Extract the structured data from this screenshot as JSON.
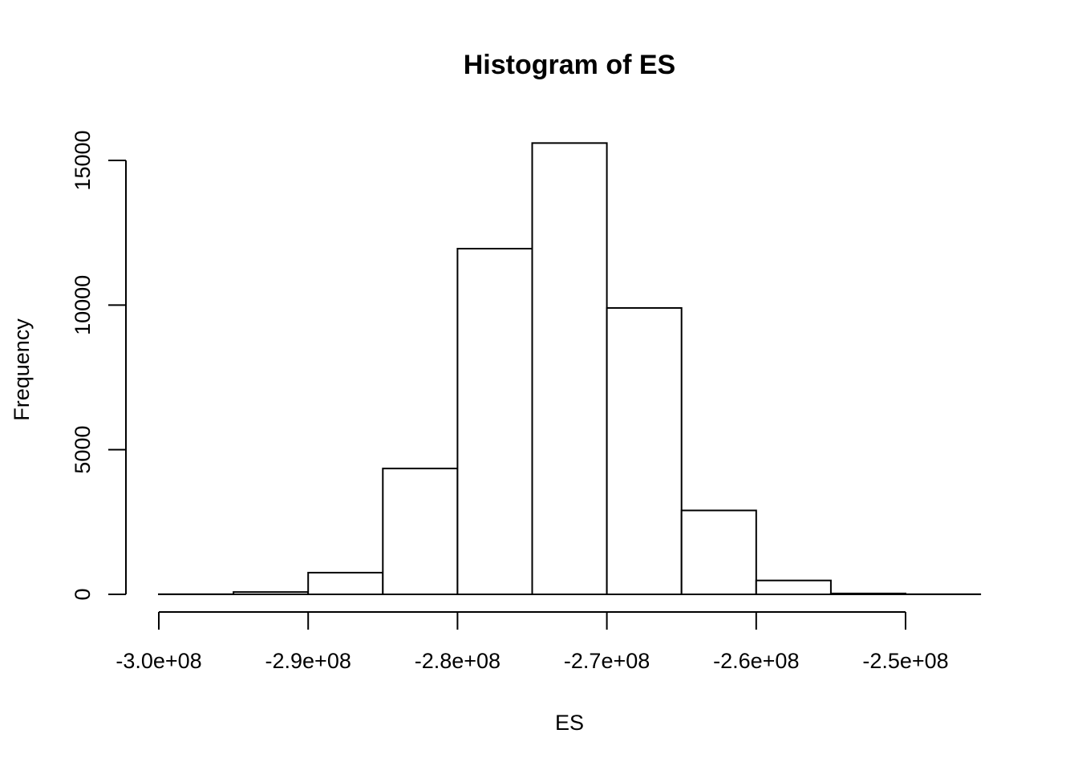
{
  "chart_data": {
    "type": "bar",
    "title": "Histogram of ES",
    "xlabel": "ES",
    "ylabel": "Frequency",
    "xlim": [
      -300000000,
      -245000000
    ],
    "ylim": [
      0,
      15000
    ],
    "x_ticks": [
      -300000000,
      -290000000,
      -280000000,
      -270000000,
      -260000000,
      -250000000
    ],
    "x_tick_labels": [
      "-3.0e+08",
      "-2.9e+08",
      "-2.8e+08",
      "-2.7e+08",
      "-2.6e+08",
      "-2.5e+08"
    ],
    "y_ticks": [
      0,
      5000,
      10000,
      15000
    ],
    "y_tick_labels": [
      "0",
      "5000",
      "10000",
      "15000"
    ],
    "bins": [
      {
        "x0": -300000000,
        "x1": -295000000,
        "count": 5
      },
      {
        "x0": -295000000,
        "x1": -290000000,
        "count": 80
      },
      {
        "x0": -290000000,
        "x1": -285000000,
        "count": 750
      },
      {
        "x0": -285000000,
        "x1": -280000000,
        "count": 4350
      },
      {
        "x0": -280000000,
        "x1": -275000000,
        "count": 11950
      },
      {
        "x0": -275000000,
        "x1": -270000000,
        "count": 15600
      },
      {
        "x0": -270000000,
        "x1": -265000000,
        "count": 9900
      },
      {
        "x0": -265000000,
        "x1": -260000000,
        "count": 2900
      },
      {
        "x0": -260000000,
        "x1": -255000000,
        "count": 480
      },
      {
        "x0": -255000000,
        "x1": -250000000,
        "count": 30
      },
      {
        "x0": -250000000,
        "x1": -245000000,
        "count": 5
      }
    ],
    "grid": false
  }
}
